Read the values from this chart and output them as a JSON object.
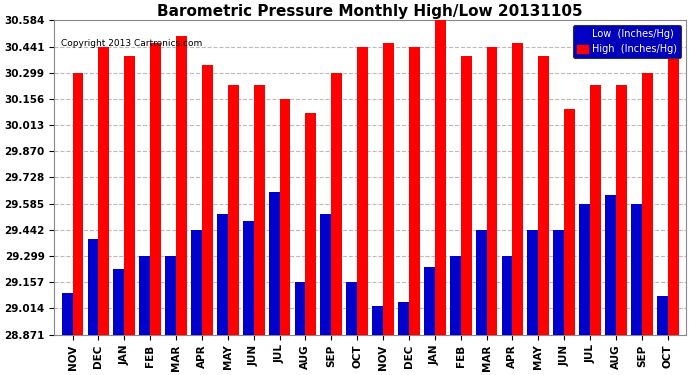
{
  "title": "Barometric Pressure Monthly High/Low 20131105",
  "copyright": "Copyright 2013 Cartronics.com",
  "categories": [
    "NOV",
    "DEC",
    "JAN",
    "FEB",
    "MAR",
    "APR",
    "MAY",
    "JUN",
    "JUL",
    "AUG",
    "SEP",
    "OCT",
    "NOV",
    "DEC",
    "JAN",
    "FEB",
    "MAR",
    "APR",
    "MAY",
    "JUN",
    "JUL",
    "AUG",
    "SEP",
    "OCT"
  ],
  "high_values": [
    30.299,
    30.441,
    30.39,
    30.46,
    30.5,
    30.34,
    30.23,
    30.23,
    30.156,
    30.08,
    30.299,
    30.441,
    30.46,
    30.441,
    30.584,
    30.39,
    30.441,
    30.46,
    30.39,
    30.1,
    30.23,
    30.23,
    30.299,
    30.39
  ],
  "low_values": [
    29.1,
    29.39,
    29.23,
    29.3,
    29.3,
    29.442,
    29.53,
    29.49,
    29.65,
    29.157,
    29.53,
    29.157,
    29.03,
    29.05,
    29.24,
    29.3,
    29.442,
    29.3,
    29.442,
    29.442,
    29.585,
    29.63,
    29.585,
    29.08
  ],
  "ylim_min": 28.871,
  "ylim_max": 30.584,
  "yticks": [
    28.871,
    29.014,
    29.157,
    29.299,
    29.442,
    29.585,
    29.728,
    29.87,
    30.013,
    30.156,
    30.299,
    30.441,
    30.584
  ],
  "bar_color_high": "#ff0000",
  "bar_color_low": "#0000cc",
  "background_color": "#ffffff",
  "plot_bg_color": "#ffffff",
  "grid_color": "#bbbbbb",
  "title_fontsize": 11,
  "legend_low_label": "Low  (Inches/Hg)",
  "legend_high_label": "High  (Inches/Hg)"
}
